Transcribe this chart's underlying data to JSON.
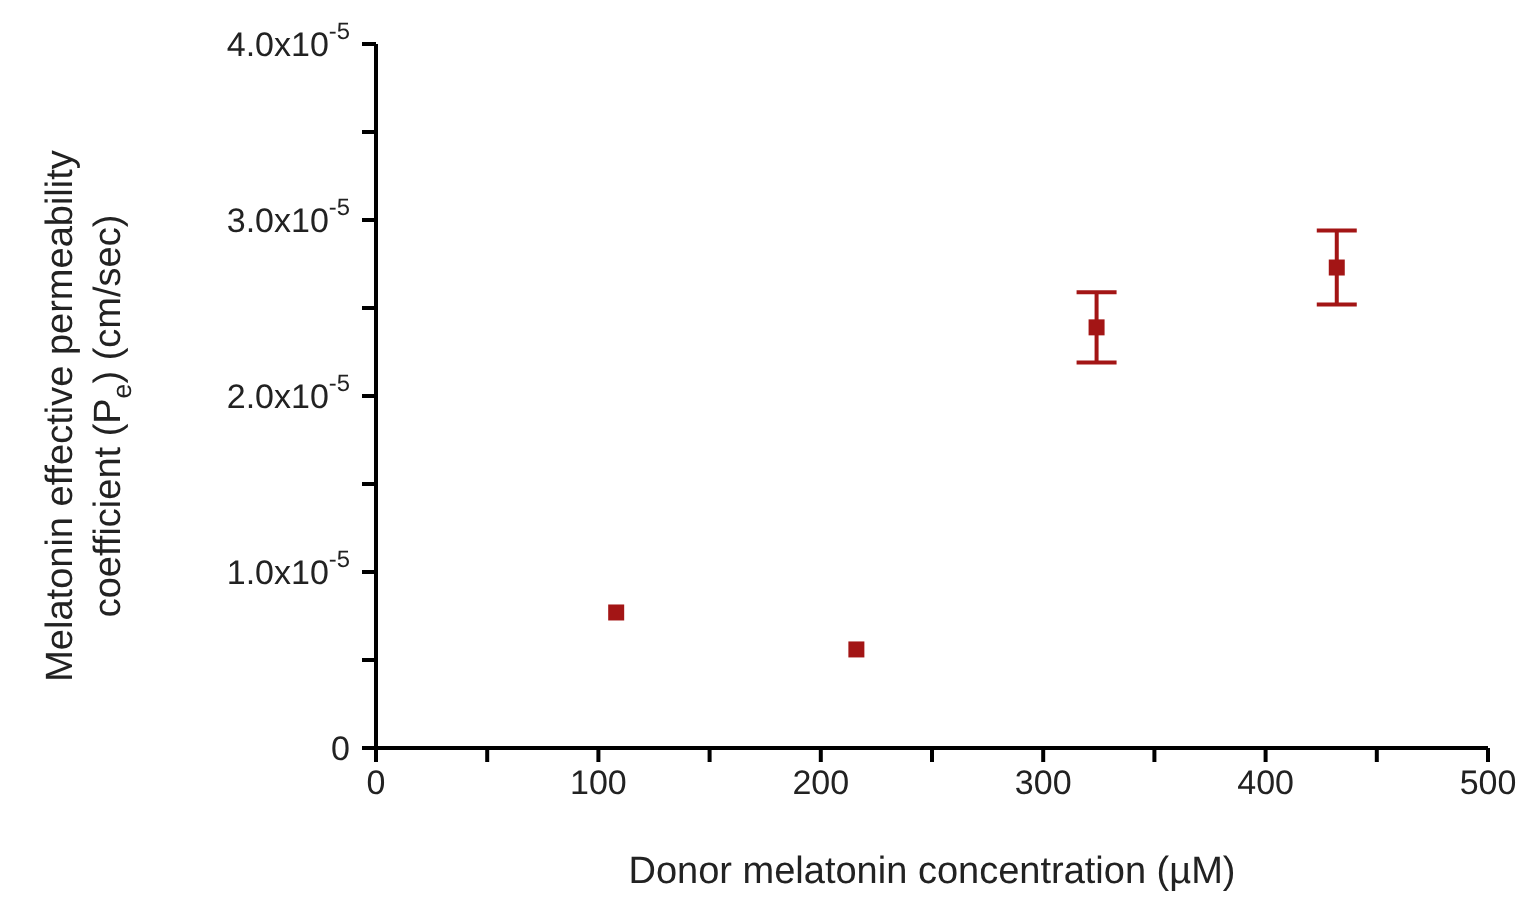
{
  "chart_data": {
    "type": "scatter",
    "xlabel": "Donor melatonin concentration (µM)",
    "ylabel": "Melatonin effective permeability coefficient (P$_{e}$) (cm/sec)",
    "x": [
      108,
      216,
      324,
      432
    ],
    "values": [
      7.7e-06,
      5.6e-06,
      2.39e-05,
      2.73e-05
    ],
    "errors": [
      null,
      null,
      2e-06,
      2.1e-06
    ],
    "color": "#a31515",
    "marker": "square",
    "grid": false,
    "xlim": [
      0,
      500
    ],
    "xticks": [
      0,
      {
        "value": 50,
        "label": null
      },
      100,
      {
        "value": 150,
        "label": null
      },
      200,
      {
        "value": 250,
        "label": null
      },
      300,
      {
        "value": 350,
        "label": null
      },
      400,
      {
        "value": 450,
        "label": null
      },
      500
    ],
    "ylim": [
      0,
      4e-05
    ],
    "yticks": [
      {
        "value": 0,
        "label": "0"
      },
      {
        "value": 5e-06,
        "label": null
      },
      {
        "value": 1e-05,
        "label": "1.0x10$^{-5}$"
      },
      {
        "value": 1.5e-05,
        "label": null
      },
      {
        "value": 2e-05,
        "label": "2.0x10$^{-5}$"
      },
      {
        "value": 2.5e-05,
        "label": null
      },
      {
        "value": 3e-05,
        "label": "3.0x10$^{-5}$"
      },
      {
        "value": 3.5e-05,
        "label": null
      },
      {
        "value": 4e-05,
        "label": "4.0x10$^{-5}$"
      }
    ]
  }
}
